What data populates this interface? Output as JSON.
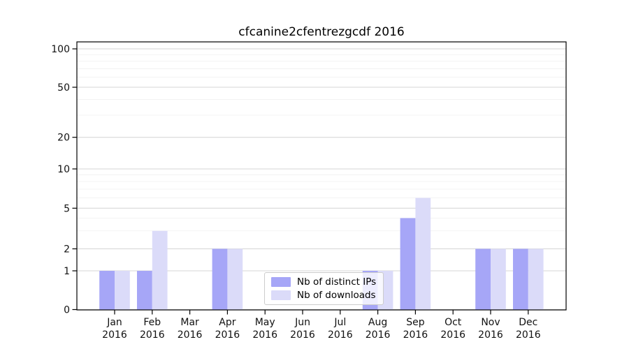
{
  "chart_data": {
    "type": "bar",
    "title": "cfcanine2cfentrezgcdf 2016",
    "categories": [
      "Jan 2016",
      "Feb 2016",
      "Mar 2016",
      "Apr 2016",
      "May 2016",
      "Jun 2016",
      "Jul 2016",
      "Aug 2016",
      "Sep 2016",
      "Oct 2016",
      "Nov 2016",
      "Dec 2016"
    ],
    "series": [
      {
        "name": "Nb of distinct IPs",
        "color": "#a6a6f7",
        "values": [
          1,
          1,
          0,
          2,
          0,
          0,
          0,
          1,
          4,
          0,
          2,
          2
        ]
      },
      {
        "name": "Nb of downloads",
        "color": "#dbdbf9",
        "values": [
          1,
          3,
          0,
          2,
          0,
          0,
          0,
          1,
          6,
          0,
          2,
          2
        ]
      }
    ],
    "yscale": "log-like (0,1 linear then logarithmic)",
    "y_ticks": [
      0,
      1,
      2,
      5,
      10,
      20,
      50,
      100
    ],
    "y_minor_ticks": [
      3,
      4,
      6,
      7,
      8,
      9,
      30,
      40,
      60,
      70,
      80,
      90
    ],
    "ylim": [
      0,
      113
    ],
    "xlabel": "",
    "ylabel": "",
    "grid": true,
    "legend_position": "lower center",
    "colors": {
      "axis": "#000000",
      "major_grid": "#d4d4d4",
      "minor_grid": "#f0f0f0",
      "tick_text": "#111111"
    }
  }
}
